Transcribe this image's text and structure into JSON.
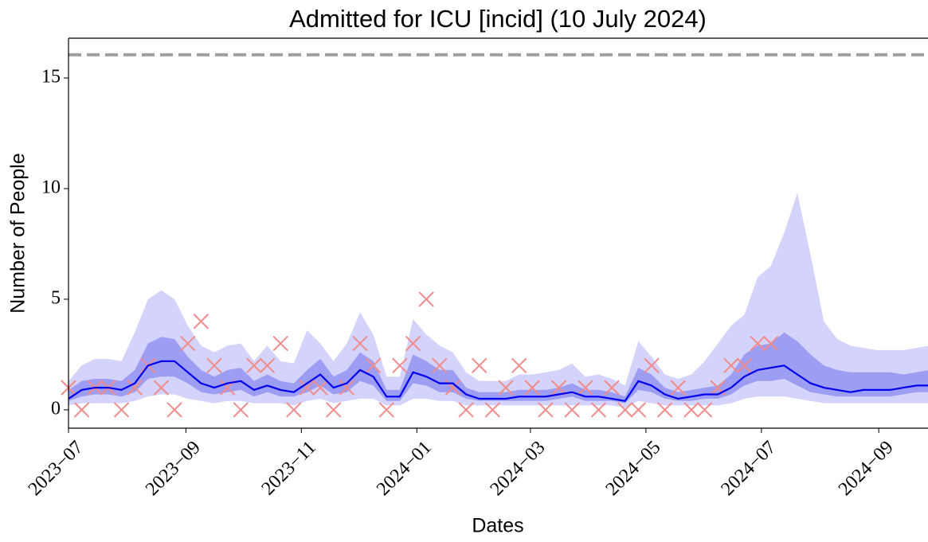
{
  "chart_data": {
    "type": "line",
    "title": "Admitted for ICU [incid] (10 July 2024)",
    "xlabel": "Dates",
    "ylabel": "Number of People",
    "x": [
      "2023-07-01",
      "2023-07-08",
      "2023-07-15",
      "2023-07-22",
      "2023-07-29",
      "2023-08-05",
      "2023-08-12",
      "2023-08-19",
      "2023-08-26",
      "2023-09-02",
      "2023-09-09",
      "2023-09-16",
      "2023-09-23",
      "2023-09-30",
      "2023-10-07",
      "2023-10-14",
      "2023-10-21",
      "2023-10-28",
      "2023-11-04",
      "2023-11-11",
      "2023-11-18",
      "2023-11-25",
      "2023-12-02",
      "2023-12-09",
      "2023-12-16",
      "2023-12-23",
      "2023-12-30",
      "2024-01-06",
      "2024-01-13",
      "2024-01-20",
      "2024-01-27",
      "2024-02-03",
      "2024-02-10",
      "2024-02-17",
      "2024-02-24",
      "2024-03-02",
      "2024-03-09",
      "2024-03-16",
      "2024-03-23",
      "2024-03-30",
      "2024-04-06",
      "2024-04-13",
      "2024-04-20",
      "2024-04-27",
      "2024-05-04",
      "2024-05-11",
      "2024-05-18",
      "2024-05-25",
      "2024-06-01",
      "2024-06-08",
      "2024-06-15",
      "2024-06-22",
      "2024-06-29",
      "2024-07-06",
      "2024-07-13",
      "2024-07-20",
      "2024-07-27",
      "2024-08-03",
      "2024-08-10",
      "2024-08-17",
      "2024-08-24",
      "2024-08-31",
      "2024-09-07",
      "2024-09-14",
      "2024-09-21",
      "2024-09-28"
    ],
    "median": {
      "color": "#0000ee",
      "values": [
        0.5,
        0.9,
        1.0,
        1.0,
        0.9,
        1.2,
        2.0,
        2.2,
        2.2,
        1.7,
        1.2,
        1.0,
        1.2,
        1.3,
        0.9,
        1.1,
        0.9,
        0.8,
        1.2,
        1.6,
        1.0,
        1.2,
        1.8,
        1.5,
        0.6,
        0.6,
        1.7,
        1.5,
        1.2,
        1.2,
        0.7,
        0.5,
        0.5,
        0.5,
        0.6,
        0.6,
        0.6,
        0.7,
        0.8,
        0.6,
        0.6,
        0.5,
        0.4,
        1.3,
        1.1,
        0.7,
        0.5,
        0.6,
        0.7,
        0.7,
        1.0,
        1.5,
        1.8,
        1.9,
        2.0,
        1.6,
        1.2,
        1.0,
        0.9,
        0.8,
        0.9,
        0.9,
        0.9,
        1.0,
        1.1,
        1.1
      ]
    },
    "bands": [
      {
        "color": "#d3d3fb",
        "lower": [
          0.2,
          0.3,
          0.3,
          0.3,
          0.3,
          0.4,
          0.6,
          0.7,
          0.7,
          0.5,
          0.4,
          0.3,
          0.4,
          0.4,
          0.3,
          0.3,
          0.3,
          0.2,
          0.4,
          0.5,
          0.3,
          0.4,
          0.5,
          0.5,
          0.2,
          0.2,
          0.5,
          0.5,
          0.4,
          0.4,
          0.2,
          0.2,
          0.2,
          0.2,
          0.2,
          0.2,
          0.2,
          0.2,
          0.2,
          0.2,
          0.2,
          0.2,
          0.1,
          0.4,
          0.3,
          0.2,
          0.2,
          0.2,
          0.2,
          0.2,
          0.3,
          0.5,
          0.6,
          0.6,
          0.6,
          0.5,
          0.4,
          0.3,
          0.3,
          0.3,
          0.3,
          0.3,
          0.3,
          0.3,
          0.3,
          0.3
        ],
        "upper": [
          1.3,
          2.0,
          2.3,
          2.3,
          2.2,
          3.5,
          5.0,
          5.4,
          5.0,
          3.8,
          2.9,
          2.6,
          2.9,
          3.0,
          2.2,
          2.9,
          2.2,
          2.1,
          3.6,
          3.0,
          2.2,
          3.0,
          4.4,
          3.4,
          1.5,
          1.5,
          4.1,
          3.4,
          2.9,
          2.6,
          1.7,
          1.3,
          1.3,
          1.3,
          1.6,
          1.6,
          1.7,
          1.8,
          2.1,
          1.5,
          1.6,
          1.4,
          1.1,
          3.1,
          2.4,
          1.6,
          1.4,
          1.6,
          2.2,
          3.0,
          3.8,
          4.3,
          6.0,
          6.5,
          8.0,
          9.8,
          7.0,
          4.0,
          3.2,
          2.9,
          2.8,
          2.7,
          2.7,
          2.7,
          2.8,
          2.9
        ]
      },
      {
        "color": "#9d9df3",
        "lower": [
          0.4,
          0.6,
          0.7,
          0.7,
          0.6,
          0.8,
          1.4,
          1.5,
          1.5,
          1.2,
          0.8,
          0.7,
          0.8,
          0.9,
          0.6,
          0.8,
          0.6,
          0.6,
          0.8,
          1.1,
          0.7,
          0.8,
          1.3,
          1.1,
          0.4,
          0.4,
          1.2,
          1.1,
          0.8,
          0.8,
          0.5,
          0.4,
          0.4,
          0.4,
          0.4,
          0.4,
          0.4,
          0.5,
          0.6,
          0.4,
          0.4,
          0.4,
          0.3,
          0.9,
          0.8,
          0.5,
          0.4,
          0.4,
          0.5,
          0.5,
          0.7,
          1.1,
          1.3,
          1.3,
          1.4,
          1.1,
          0.8,
          0.7,
          0.6,
          0.6,
          0.6,
          0.6,
          0.6,
          0.7,
          0.8,
          0.8
        ],
        "upper": [
          0.9,
          1.3,
          1.4,
          1.4,
          1.3,
          1.8,
          3.0,
          3.3,
          3.2,
          2.4,
          1.8,
          1.5,
          1.8,
          1.9,
          1.3,
          1.6,
          1.3,
          1.2,
          1.8,
          2.3,
          1.5,
          1.8,
          2.6,
          2.2,
          0.9,
          0.9,
          2.5,
          2.2,
          1.8,
          1.8,
          1.0,
          0.8,
          0.8,
          0.8,
          0.9,
          0.9,
          0.9,
          1.0,
          1.2,
          0.9,
          0.9,
          0.8,
          0.6,
          1.9,
          1.6,
          1.0,
          0.8,
          0.9,
          1.0,
          1.1,
          1.6,
          2.5,
          2.9,
          3.0,
          3.5,
          3.1,
          2.5,
          2.0,
          1.8,
          1.7,
          1.7,
          1.7,
          1.7,
          1.6,
          1.7,
          1.8
        ]
      }
    ],
    "observed": {
      "color": "#f28b8b",
      "values": [
        1,
        0,
        1,
        1,
        0,
        1,
        2,
        1,
        0,
        3,
        4,
        2,
        1,
        0,
        2,
        2,
        3,
        0,
        1,
        1,
        0,
        1,
        3,
        2,
        0,
        2,
        3,
        5,
        2,
        1,
        0,
        2,
        0,
        1,
        2,
        1,
        0,
        1,
        0,
        1,
        0,
        1,
        0,
        0,
        2,
        0,
        1,
        0,
        0,
        1,
        2,
        2,
        3,
        3,
        null,
        null,
        null,
        null,
        null,
        null,
        null,
        null,
        null,
        null,
        null,
        null
      ]
    },
    "hline": {
      "value": 16.05,
      "color": "#a0a0a0"
    },
    "xlim": [
      "2023-07-01",
      "2024-09-27"
    ],
    "xticks": [
      {
        "value": "2023-07-01",
        "label": "2023−07"
      },
      {
        "value": "2023-09-01",
        "label": "2023−09"
      },
      {
        "value": "2023-11-01",
        "label": "2023−11"
      },
      {
        "value": "2024-01-01",
        "label": "2024−01"
      },
      {
        "value": "2024-03-01",
        "label": "2024−03"
      },
      {
        "value": "2024-05-01",
        "label": "2024−05"
      },
      {
        "value": "2024-07-01",
        "label": "2024−07"
      },
      {
        "value": "2024-09-01",
        "label": "2024−09"
      }
    ],
    "ylim": [
      -0.83,
      16.8
    ],
    "yticks": [
      0,
      5,
      10,
      15
    ]
  }
}
